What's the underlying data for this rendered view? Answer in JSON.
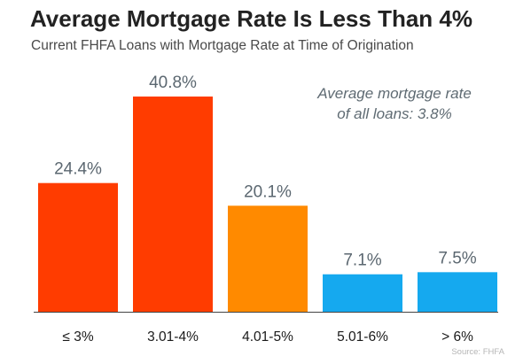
{
  "title": "Average Mortgage Rate Is Less Than 4%",
  "subtitle": "Current FHFA Loans with Mortgage Rate at Time of Origination",
  "annotation": {
    "line1": "Average mortgage rate",
    "line2": "of all loans: 3.8%"
  },
  "source": "Source: FHFA",
  "chart_data": {
    "type": "bar",
    "categories": [
      "≤ 3%",
      "3.01-4%",
      "4.01-5%",
      "5.01-6%",
      "> 6%"
    ],
    "values": [
      24.4,
      40.8,
      20.1,
      7.1,
      7.5
    ],
    "value_labels": [
      "24.4%",
      "40.8%",
      "20.1%",
      "7.1%",
      "7.5%"
    ],
    "colors": [
      "#ff3c00",
      "#ff3c00",
      "#ff8a00",
      "#15a9ef",
      "#15a9ef"
    ],
    "xlabel": "",
    "ylabel": "",
    "ylim": [
      0,
      45
    ],
    "grid": false,
    "legend": "none"
  }
}
